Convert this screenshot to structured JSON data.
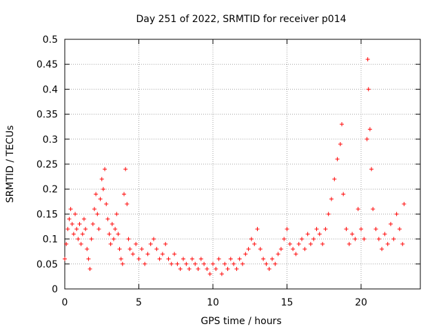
{
  "chart_data": {
    "type": "scatter",
    "title": "Day 251 of 2022, SRMTID for receiver p014",
    "xlabel": "GPS time / hours",
    "ylabel": "SRMTID / TECUs",
    "xlim": [
      0,
      24
    ],
    "ylim": [
      0,
      0.5
    ],
    "grid": true,
    "marker": "+",
    "colors": {
      "points": "#ff0000",
      "grid": "#a0a0a0",
      "axis": "#000000"
    },
    "x_ticks": [
      0,
      5,
      10,
      15,
      20
    ],
    "x_tick_labels": [
      "0",
      "5",
      "10",
      "15",
      "20"
    ],
    "y_ticks": [
      0,
      0.05,
      0.1,
      0.15,
      0.2,
      0.25,
      0.3,
      0.35,
      0.4,
      0.45,
      0.5
    ],
    "y_tick_labels": [
      "0",
      "0.05",
      "0.1",
      "0.15",
      "0.2",
      "0.25",
      "0.3",
      "0.35",
      "0.4",
      "0.45",
      "0.5"
    ],
    "series": [
      {
        "name": "SRMTID",
        "points": [
          [
            0.0,
            0.06
          ],
          [
            0.1,
            0.09
          ],
          [
            0.2,
            0.12
          ],
          [
            0.3,
            0.14
          ],
          [
            0.4,
            0.16
          ],
          [
            0.5,
            0.13
          ],
          [
            0.6,
            0.11
          ],
          [
            0.7,
            0.15
          ],
          [
            0.8,
            0.12
          ],
          [
            0.9,
            0.1
          ],
          [
            1.0,
            0.13
          ],
          [
            1.1,
            0.09
          ],
          [
            1.2,
            0.11
          ],
          [
            1.3,
            0.14
          ],
          [
            1.4,
            0.12
          ],
          [
            1.5,
            0.08
          ],
          [
            1.6,
            0.06
          ],
          [
            1.7,
            0.04
          ],
          [
            1.8,
            0.1
          ],
          [
            1.9,
            0.13
          ],
          [
            2.0,
            0.16
          ],
          [
            2.1,
            0.19
          ],
          [
            2.2,
            0.15
          ],
          [
            2.3,
            0.12
          ],
          [
            2.4,
            0.18
          ],
          [
            2.5,
            0.22
          ],
          [
            2.6,
            0.2
          ],
          [
            2.7,
            0.24
          ],
          [
            2.8,
            0.17
          ],
          [
            2.9,
            0.14
          ],
          [
            3.0,
            0.11
          ],
          [
            3.1,
            0.09
          ],
          [
            3.2,
            0.13
          ],
          [
            3.3,
            0.1
          ],
          [
            3.4,
            0.12
          ],
          [
            3.5,
            0.15
          ],
          [
            3.6,
            0.11
          ],
          [
            3.7,
            0.08
          ],
          [
            3.8,
            0.06
          ],
          [
            3.9,
            0.05
          ],
          [
            4.0,
            0.19
          ],
          [
            4.1,
            0.24
          ],
          [
            4.2,
            0.17
          ],
          [
            4.3,
            0.1
          ],
          [
            4.4,
            0.08
          ],
          [
            4.6,
            0.07
          ],
          [
            4.8,
            0.09
          ],
          [
            5.0,
            0.06
          ],
          [
            5.2,
            0.08
          ],
          [
            5.4,
            0.05
          ],
          [
            5.6,
            0.07
          ],
          [
            5.8,
            0.09
          ],
          [
            6.0,
            0.1
          ],
          [
            6.2,
            0.08
          ],
          [
            6.4,
            0.06
          ],
          [
            6.6,
            0.07
          ],
          [
            6.8,
            0.09
          ],
          [
            7.0,
            0.06
          ],
          [
            7.2,
            0.05
          ],
          [
            7.4,
            0.07
          ],
          [
            7.6,
            0.05
          ],
          [
            7.8,
            0.04
          ],
          [
            8.0,
            0.06
          ],
          [
            8.2,
            0.05
          ],
          [
            8.4,
            0.04
          ],
          [
            8.6,
            0.06
          ],
          [
            8.8,
            0.05
          ],
          [
            9.0,
            0.04
          ],
          [
            9.2,
            0.06
          ],
          [
            9.4,
            0.05
          ],
          [
            9.6,
            0.04
          ],
          [
            9.8,
            0.03
          ],
          [
            10.0,
            0.05
          ],
          [
            10.2,
            0.04
          ],
          [
            10.4,
            0.06
          ],
          [
            10.6,
            0.03
          ],
          [
            10.8,
            0.05
          ],
          [
            11.0,
            0.04
          ],
          [
            11.2,
            0.06
          ],
          [
            11.4,
            0.05
          ],
          [
            11.6,
            0.04
          ],
          [
            11.8,
            0.06
          ],
          [
            12.0,
            0.05
          ],
          [
            12.2,
            0.07
          ],
          [
            12.4,
            0.08
          ],
          [
            12.6,
            0.1
          ],
          [
            12.8,
            0.09
          ],
          [
            13.0,
            0.12
          ],
          [
            13.2,
            0.08
          ],
          [
            13.4,
            0.06
          ],
          [
            13.6,
            0.05
          ],
          [
            13.8,
            0.04
          ],
          [
            14.0,
            0.06
          ],
          [
            14.2,
            0.05
          ],
          [
            14.4,
            0.07
          ],
          [
            14.6,
            0.08
          ],
          [
            14.8,
            0.1
          ],
          [
            15.0,
            0.12
          ],
          [
            15.2,
            0.09
          ],
          [
            15.4,
            0.08
          ],
          [
            15.6,
            0.07
          ],
          [
            15.8,
            0.09
          ],
          [
            16.0,
            0.1
          ],
          [
            16.2,
            0.08
          ],
          [
            16.4,
            0.11
          ],
          [
            16.6,
            0.09
          ],
          [
            16.8,
            0.1
          ],
          [
            17.0,
            0.12
          ],
          [
            17.2,
            0.11
          ],
          [
            17.4,
            0.09
          ],
          [
            17.6,
            0.12
          ],
          [
            17.8,
            0.15
          ],
          [
            18.0,
            0.18
          ],
          [
            18.2,
            0.22
          ],
          [
            18.4,
            0.26
          ],
          [
            18.6,
            0.29
          ],
          [
            18.7,
            0.33
          ],
          [
            18.8,
            0.19
          ],
          [
            19.0,
            0.12
          ],
          [
            19.2,
            0.09
          ],
          [
            19.4,
            0.11
          ],
          [
            19.6,
            0.1
          ],
          [
            19.8,
            0.16
          ],
          [
            20.0,
            0.12
          ],
          [
            20.2,
            0.1
          ],
          [
            20.4,
            0.3
          ],
          [
            20.45,
            0.46
          ],
          [
            20.5,
            0.4
          ],
          [
            20.6,
            0.32
          ],
          [
            20.7,
            0.24
          ],
          [
            20.8,
            0.16
          ],
          [
            21.0,
            0.12
          ],
          [
            21.2,
            0.1
          ],
          [
            21.4,
            0.08
          ],
          [
            21.6,
            0.11
          ],
          [
            21.8,
            0.09
          ],
          [
            22.0,
            0.13
          ],
          [
            22.2,
            0.1
          ],
          [
            22.4,
            0.15
          ],
          [
            22.6,
            0.12
          ],
          [
            22.8,
            0.09
          ],
          [
            22.9,
            0.17
          ]
        ]
      }
    ]
  }
}
